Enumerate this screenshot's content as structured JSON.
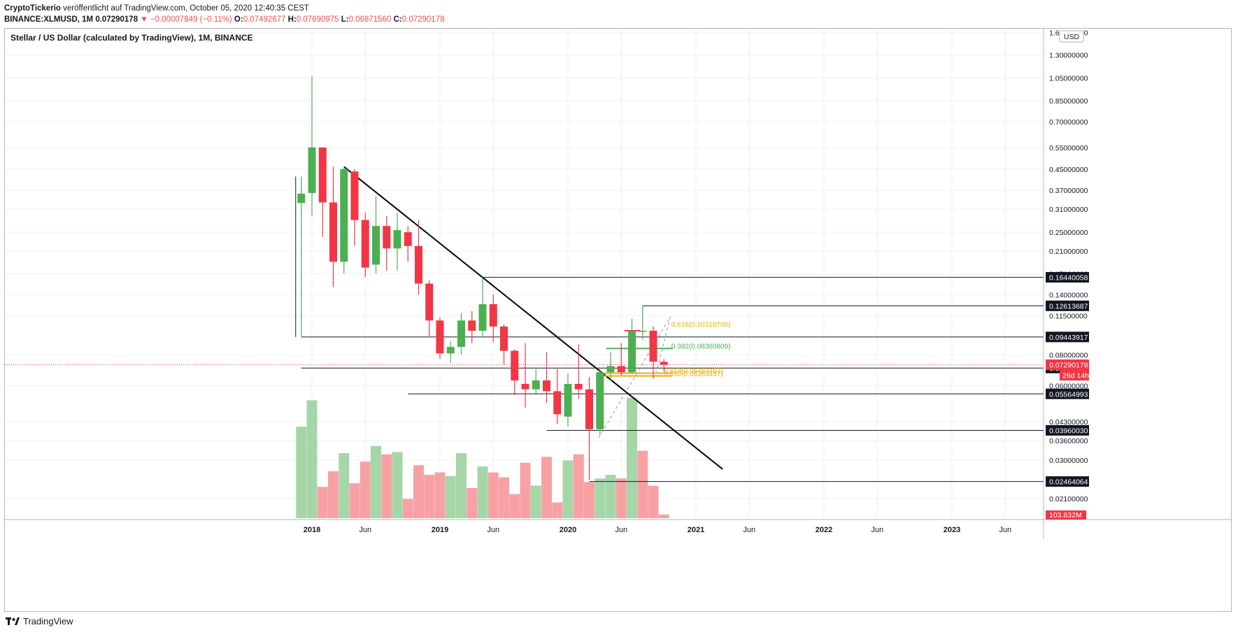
{
  "header": {
    "line1_author": "CryptoTickerio",
    "line1_rest": " veröffentlicht auf TradingView.com, October 05, 2020 12:40:35 CEST",
    "symbol": "BINANCE:XLMUSD, 1M",
    "last_price": "0.07290178",
    "change_arrow": "▼",
    "change": "−0.00007849 (−0.11%)",
    "o_label": "O:",
    "o_value": "0.07492677",
    "h_label": "H:",
    "h_value": "0.07690975",
    "l_label": "L:",
    "l_value": "0.06871560",
    "c_label": "C:",
    "c_value": "0.07290178"
  },
  "footer": {
    "brand": "TradingView"
  },
  "colors": {
    "up": "#4caf50",
    "down": "#f23645",
    "volume_up": "#a5d6a7",
    "volume_down": "#f7a1a5",
    "grid": "#eef0f3",
    "trendline": "#000000"
  },
  "chart_data": {
    "type": "candlestick",
    "title": "Stellar / US Dollar (calculated by TradingView), 1M, BINANCE",
    "currency": "USD",
    "y_scale": "log",
    "ylim": [
      0.0175,
      1.65
    ],
    "x_ticks": [
      "2018",
      "Jun",
      "2019",
      "Jun",
      "2020",
      "Jun",
      "2021",
      "Jun",
      "2022",
      "Jun",
      "2023",
      "Jun"
    ],
    "x_tick_index": [
      0,
      5,
      12,
      17,
      24,
      29,
      36,
      41,
      48,
      53,
      60,
      65
    ],
    "y_ticks": [
      "1.60000000",
      "1.30000000",
      "1.05000000",
      "0.85000000",
      "0.70000000",
      "0.55000000",
      "0.45000000",
      "0.37000000",
      "0.31000000",
      "0.25000000",
      "0.21000000",
      "0.17000000",
      "0.14000000",
      "0.11500000",
      "0.08000000",
      "0.06000000",
      "0.04300000",
      "0.03600000",
      "0.03000000",
      "0.02100000"
    ],
    "y_tick_values": [
      1.6,
      1.3,
      1.05,
      0.85,
      0.7,
      0.55,
      0.45,
      0.37,
      0.31,
      0.25,
      0.21,
      0.17,
      0.14,
      0.115,
      0.08,
      0.06,
      0.043,
      0.036,
      0.03,
      0.021
    ],
    "candles": [
      {
        "i": -1,
        "o": 0.328,
        "h": 0.42,
        "l": 0.095,
        "c": 0.358
      },
      {
        "i": 0,
        "o": 0.36,
        "h": 1.07,
        "l": 0.29,
        "c": 0.55
      },
      {
        "i": 1,
        "o": 0.55,
        "h": 0.55,
        "l": 0.24,
        "c": 0.33
      },
      {
        "i": 2,
        "o": 0.33,
        "h": 0.46,
        "l": 0.15,
        "c": 0.19
      },
      {
        "i": 3,
        "o": 0.19,
        "h": 0.46,
        "l": 0.17,
        "c": 0.45
      },
      {
        "i": 4,
        "o": 0.44,
        "h": 0.45,
        "l": 0.22,
        "c": 0.28
      },
      {
        "i": 5,
        "o": 0.28,
        "h": 0.3,
        "l": 0.165,
        "c": 0.18
      },
      {
        "i": 6,
        "o": 0.185,
        "h": 0.35,
        "l": 0.17,
        "c": 0.265
      },
      {
        "i": 7,
        "o": 0.265,
        "h": 0.29,
        "l": 0.175,
        "c": 0.215
      },
      {
        "i": 8,
        "o": 0.215,
        "h": 0.3,
        "l": 0.175,
        "c": 0.255
      },
      {
        "i": 9,
        "o": 0.25,
        "h": 0.265,
        "l": 0.19,
        "c": 0.22
      },
      {
        "i": 10,
        "o": 0.22,
        "h": 0.28,
        "l": 0.14,
        "c": 0.155
      },
      {
        "i": 11,
        "o": 0.155,
        "h": 0.16,
        "l": 0.095,
        "c": 0.11
      },
      {
        "i": 12,
        "o": 0.11,
        "h": 0.113,
        "l": 0.077,
        "c": 0.081
      },
      {
        "i": 13,
        "o": 0.081,
        "h": 0.091,
        "l": 0.074,
        "c": 0.086
      },
      {
        "i": 14,
        "o": 0.086,
        "h": 0.118,
        "l": 0.08,
        "c": 0.11
      },
      {
        "i": 15,
        "o": 0.11,
        "h": 0.12,
        "l": 0.089,
        "c": 0.1
      },
      {
        "i": 16,
        "o": 0.1,
        "h": 0.164,
        "l": 0.095,
        "c": 0.128
      },
      {
        "i": 17,
        "o": 0.128,
        "h": 0.14,
        "l": 0.09,
        "c": 0.104
      },
      {
        "i": 18,
        "o": 0.104,
        "h": 0.106,
        "l": 0.073,
        "c": 0.083
      },
      {
        "i": 19,
        "o": 0.083,
        "h": 0.084,
        "l": 0.055,
        "c": 0.063
      },
      {
        "i": 20,
        "o": 0.061,
        "h": 0.089,
        "l": 0.049,
        "c": 0.058
      },
      {
        "i": 21,
        "o": 0.058,
        "h": 0.07,
        "l": 0.055,
        "c": 0.063
      },
      {
        "i": 22,
        "o": 0.063,
        "h": 0.082,
        "l": 0.051,
        "c": 0.057
      },
      {
        "i": 23,
        "o": 0.057,
        "h": 0.07,
        "l": 0.042,
        "c": 0.046
      },
      {
        "i": 24,
        "o": 0.045,
        "h": 0.067,
        "l": 0.041,
        "c": 0.061
      },
      {
        "i": 25,
        "o": 0.061,
        "h": 0.088,
        "l": 0.053,
        "c": 0.058
      },
      {
        "i": 26,
        "o": 0.058,
        "h": 0.065,
        "l": 0.025,
        "c": 0.04
      },
      {
        "i": 27,
        "o": 0.04,
        "h": 0.071,
        "l": 0.038,
        "c": 0.068
      },
      {
        "i": 28,
        "o": 0.068,
        "h": 0.082,
        "l": 0.063,
        "c": 0.072
      },
      {
        "i": 29,
        "o": 0.072,
        "h": 0.089,
        "l": 0.066,
        "c": 0.068
      },
      {
        "i": 30,
        "o": 0.068,
        "h": 0.112,
        "l": 0.067,
        "c": 0.1
      },
      {
        "i": 31,
        "o": 0.1,
        "h": 0.126,
        "l": 0.092,
        "c": 0.1
      },
      {
        "i": 32,
        "o": 0.1,
        "h": 0.104,
        "l": 0.064,
        "c": 0.075
      },
      {
        "i": 33,
        "o": 0.0749,
        "h": 0.0769,
        "l": 0.0687,
        "c": 0.0729
      }
    ],
    "volume": {
      "label": "103.832M",
      "values": [
        {
          "i": -1,
          "v": 0.76,
          "up": true
        },
        {
          "i": 0,
          "v": 0.98,
          "up": true
        },
        {
          "i": 1,
          "v": 0.26,
          "up": false
        },
        {
          "i": 2,
          "v": 0.39,
          "up": false
        },
        {
          "i": 3,
          "v": 0.54,
          "up": true
        },
        {
          "i": 4,
          "v": 0.29,
          "up": false
        },
        {
          "i": 5,
          "v": 0.47,
          "up": false
        },
        {
          "i": 6,
          "v": 0.6,
          "up": true
        },
        {
          "i": 7,
          "v": 0.53,
          "up": false
        },
        {
          "i": 8,
          "v": 0.55,
          "up": true
        },
        {
          "i": 9,
          "v": 0.16,
          "up": false
        },
        {
          "i": 10,
          "v": 0.44,
          "up": false
        },
        {
          "i": 11,
          "v": 0.36,
          "up": false
        },
        {
          "i": 12,
          "v": 0.38,
          "up": false
        },
        {
          "i": 13,
          "v": 0.35,
          "up": true
        },
        {
          "i": 14,
          "v": 0.54,
          "up": true
        },
        {
          "i": 15,
          "v": 0.25,
          "up": false
        },
        {
          "i": 16,
          "v": 0.43,
          "up": true
        },
        {
          "i": 17,
          "v": 0.38,
          "up": false
        },
        {
          "i": 18,
          "v": 0.34,
          "up": false
        },
        {
          "i": 19,
          "v": 0.2,
          "up": false
        },
        {
          "i": 20,
          "v": 0.46,
          "up": false
        },
        {
          "i": 21,
          "v": 0.27,
          "up": true
        },
        {
          "i": 22,
          "v": 0.51,
          "up": false
        },
        {
          "i": 23,
          "v": 0.13,
          "up": false
        },
        {
          "i": 24,
          "v": 0.48,
          "up": true
        },
        {
          "i": 25,
          "v": 0.53,
          "up": false
        },
        {
          "i": 26,
          "v": 0.3,
          "up": false
        },
        {
          "i": 27,
          "v": 0.33,
          "up": true
        },
        {
          "i": 28,
          "v": 0.36,
          "up": true
        },
        {
          "i": 29,
          "v": 0.33,
          "up": false
        },
        {
          "i": 30,
          "v": 1.0,
          "up": true
        },
        {
          "i": 31,
          "v": 0.56,
          "up": false
        },
        {
          "i": 32,
          "v": 0.27,
          "up": false
        },
        {
          "i": 33,
          "v": 0.03,
          "up": false
        }
      ]
    },
    "horizontal_levels": [
      {
        "value": 0.1644,
        "label": "0.16440058",
        "from_i": 16
      },
      {
        "value": 0.1261,
        "label": "0.12613687",
        "from_i": 31
      },
      {
        "value": 0.0944,
        "label": "0.09443917",
        "from_i": -1
      },
      {
        "value": 0.0707,
        "label": "0.07069552",
        "from_i": -1
      },
      {
        "value": 0.0556,
        "label": "0.05564993",
        "from_i": 9
      },
      {
        "value": 0.0396,
        "label": "0.03960030",
        "from_i": 22
      },
      {
        "value": 0.0246,
        "label": "0.02464064",
        "from_i": 26
      }
    ],
    "current_price": {
      "value": 0.0729,
      "label": "0.07290178",
      "countdown": "26d 14h"
    },
    "trendline": {
      "from_i": 3,
      "from_v": 0.46,
      "to_i": 38.5,
      "to_v": 0.0276
    },
    "fib_labels": [
      {
        "text": "0.618(0.10310700)",
        "i": 33.7,
        "v": 0.1035,
        "color": "#e8b008"
      },
      {
        "text": "0.382(0.08360809)",
        "i": 33.7,
        "v": 0.0848,
        "color": "#4caf50"
      },
      {
        "text": "0.618(0.06483457)",
        "i": 33.0,
        "v": 0.0675,
        "color": "#e8b008"
      },
      {
        "text": "0.650(0.06383457)",
        "i": 33.0,
        "v": 0.0655,
        "color": "#e8b008"
      }
    ]
  }
}
